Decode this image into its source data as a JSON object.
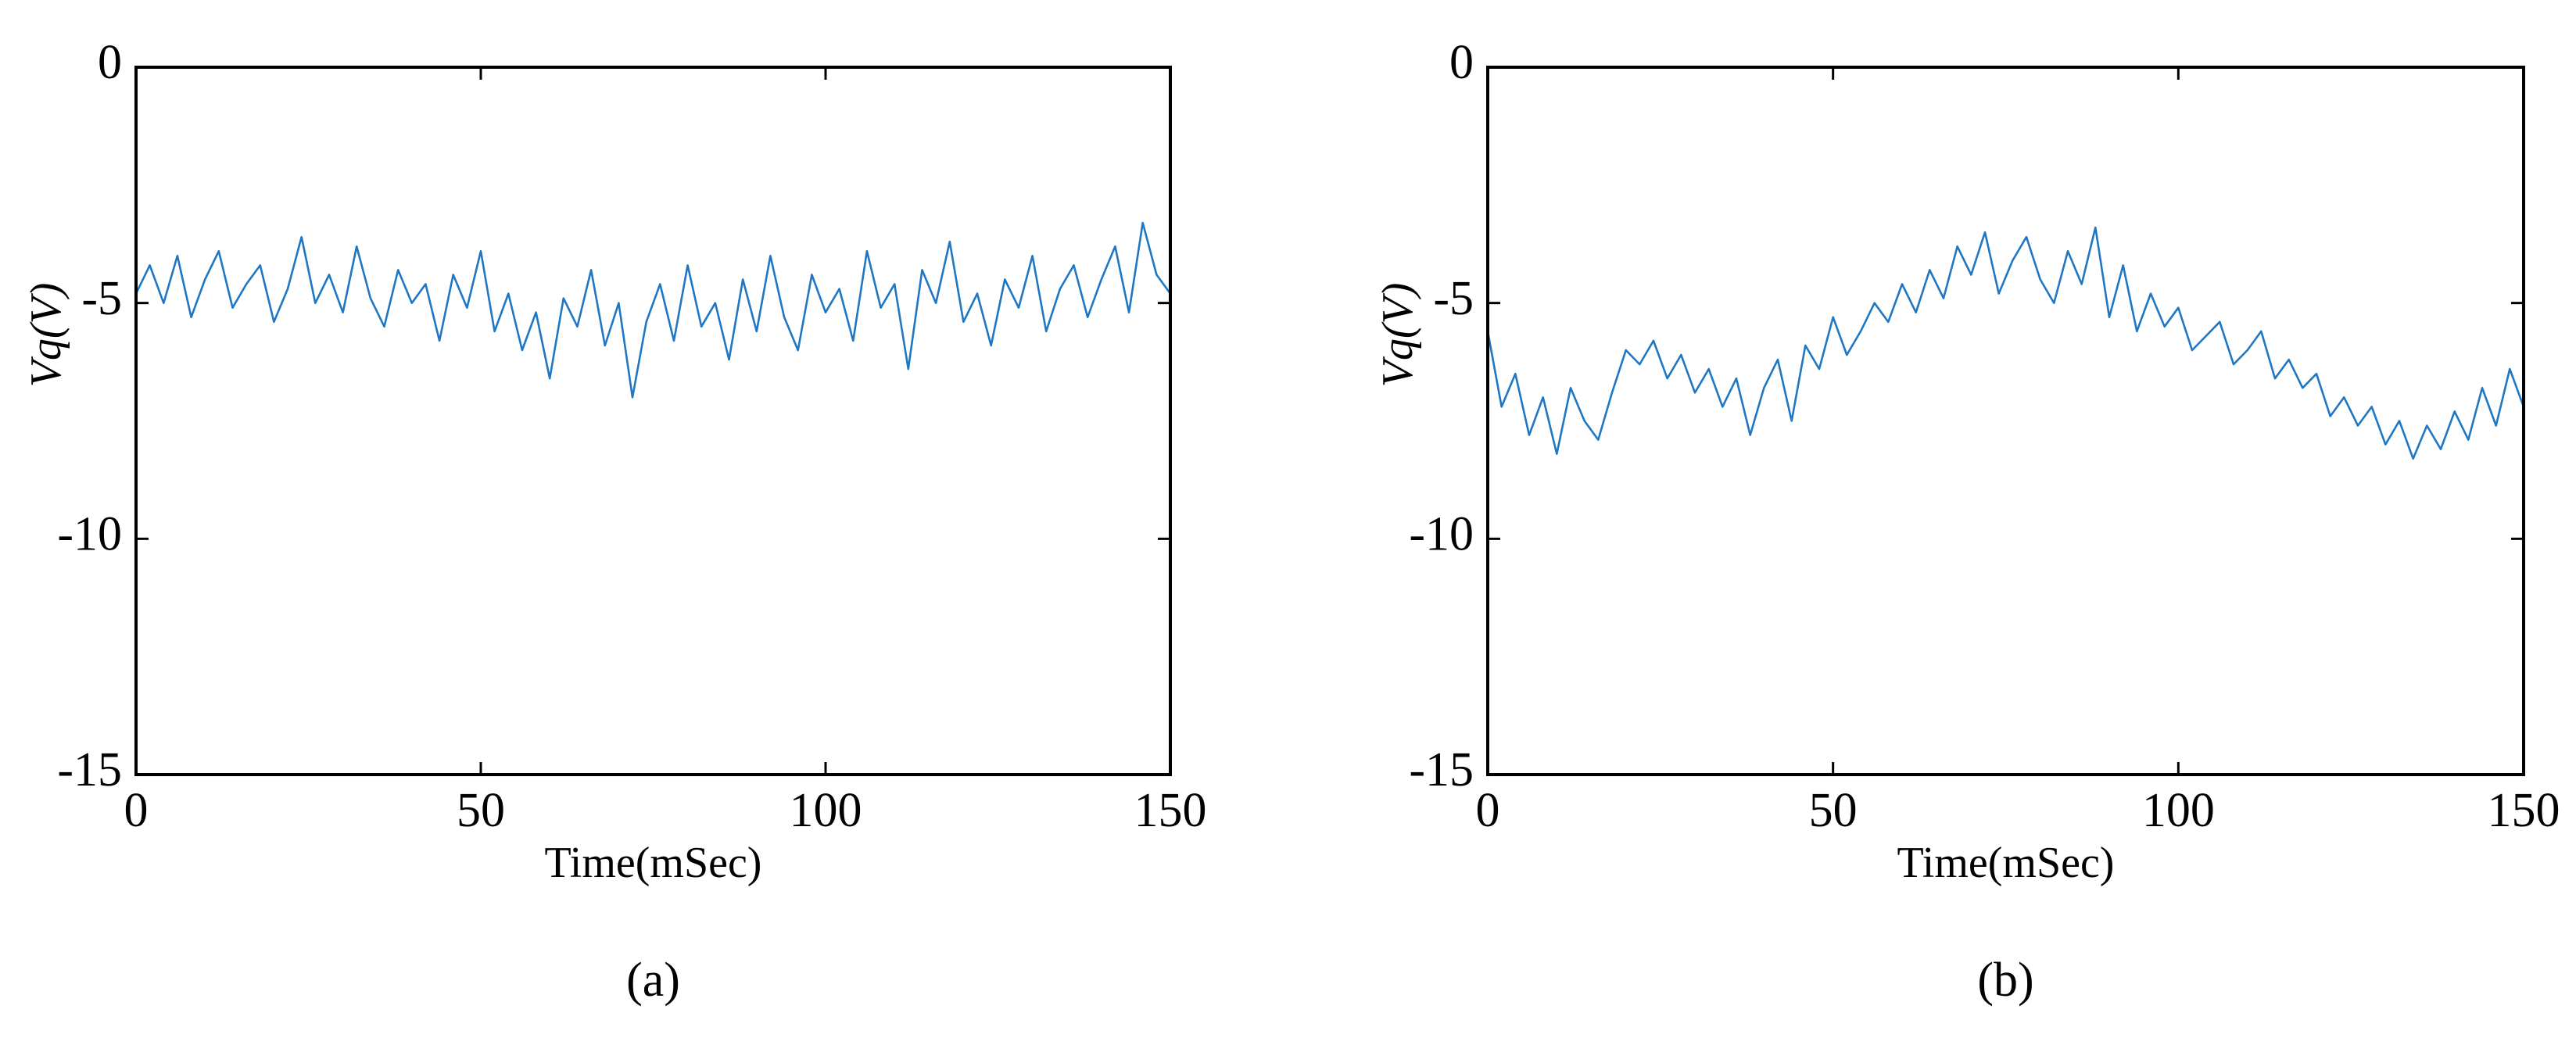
{
  "chart_data": [
    {
      "type": "line",
      "caption": "(a)",
      "x_label": "Time(mSec)",
      "y_label": "Vq(V)",
      "color": "#1f77c4",
      "xlim": [
        0,
        150
      ],
      "ylim": [
        -15,
        0
      ],
      "xticks": [
        0,
        50,
        100,
        150
      ],
      "yticks": [
        -15,
        -10,
        -5,
        0
      ],
      "x": [
        0,
        2,
        4,
        6,
        8,
        10,
        12,
        14,
        16,
        18,
        20,
        22,
        24,
        26,
        28,
        30,
        32,
        34,
        36,
        38,
        40,
        42,
        44,
        46,
        48,
        50,
        52,
        54,
        56,
        58,
        60,
        62,
        64,
        66,
        68,
        70,
        72,
        74,
        76,
        78,
        80,
        82,
        84,
        86,
        88,
        90,
        92,
        94,
        96,
        98,
        100,
        102,
        104,
        106,
        108,
        110,
        112,
        114,
        116,
        118,
        120,
        122,
        124,
        126,
        128,
        130,
        132,
        134,
        136,
        138,
        140,
        142,
        144,
        146,
        148,
        150
      ],
      "values": [
        -4.8,
        -4.2,
        -5.0,
        -4.0,
        -5.3,
        -4.5,
        -3.9,
        -5.1,
        -4.6,
        -4.2,
        -5.4,
        -4.7,
        -3.6,
        -5.0,
        -4.4,
        -5.2,
        -3.8,
        -4.9,
        -5.5,
        -4.3,
        -5.0,
        -4.6,
        -5.8,
        -4.4,
        -5.1,
        -3.9,
        -5.6,
        -4.8,
        -6.0,
        -5.2,
        -6.6,
        -4.9,
        -5.5,
        -4.3,
        -5.9,
        -5.0,
        -7.0,
        -5.4,
        -4.6,
        -5.8,
        -4.2,
        -5.5,
        -5.0,
        -6.2,
        -4.5,
        -5.6,
        -4.0,
        -5.3,
        -6.0,
        -4.4,
        -5.2,
        -4.7,
        -5.8,
        -3.9,
        -5.1,
        -4.6,
        -6.4,
        -4.3,
        -5.0,
        -3.7,
        -5.4,
        -4.8,
        -5.9,
        -4.5,
        -5.1,
        -4.0,
        -5.6,
        -4.7,
        -4.2,
        -5.3,
        -4.5,
        -3.8,
        -5.2,
        -3.3,
        -4.4,
        -4.8
      ]
    },
    {
      "type": "line",
      "caption": "(b)",
      "x_label": "Time(mSec)",
      "y_label": "Vq(V)",
      "color": "#1f77c4",
      "xlim": [
        0,
        150
      ],
      "ylim": [
        -15,
        0
      ],
      "xticks": [
        0,
        50,
        100,
        150
      ],
      "yticks": [
        -15,
        -10,
        -5,
        0
      ],
      "x": [
        0,
        2,
        4,
        6,
        8,
        10,
        12,
        14,
        16,
        18,
        20,
        22,
        24,
        26,
        28,
        30,
        32,
        34,
        36,
        38,
        40,
        42,
        44,
        46,
        48,
        50,
        52,
        54,
        56,
        58,
        60,
        62,
        64,
        66,
        68,
        70,
        72,
        74,
        76,
        78,
        80,
        82,
        84,
        86,
        88,
        90,
        92,
        94,
        96,
        98,
        100,
        102,
        104,
        106,
        108,
        110,
        112,
        114,
        116,
        118,
        120,
        122,
        124,
        126,
        128,
        130,
        132,
        134,
        136,
        138,
        140,
        142,
        144,
        146,
        148,
        150
      ],
      "values": [
        -5.6,
        -7.2,
        -6.5,
        -7.8,
        -7.0,
        -8.2,
        -6.8,
        -7.5,
        -7.9,
        -6.9,
        -6.0,
        -6.3,
        -5.8,
        -6.6,
        -6.1,
        -6.9,
        -6.4,
        -7.2,
        -6.6,
        -7.8,
        -6.8,
        -6.2,
        -7.5,
        -5.9,
        -6.4,
        -5.3,
        -6.1,
        -5.6,
        -5.0,
        -5.4,
        -4.6,
        -5.2,
        -4.3,
        -4.9,
        -3.8,
        -4.4,
        -3.5,
        -4.8,
        -4.1,
        -3.6,
        -4.5,
        -5.0,
        -3.9,
        -4.6,
        -3.4,
        -5.3,
        -4.2,
        -5.6,
        -4.8,
        -5.5,
        -5.1,
        -6.0,
        -5.7,
        -5.4,
        -6.3,
        -6.0,
        -5.6,
        -6.6,
        -6.2,
        -6.8,
        -6.5,
        -7.4,
        -7.0,
        -7.6,
        -7.2,
        -8.0,
        -7.5,
        -8.3,
        -7.6,
        -8.1,
        -7.3,
        -7.9,
        -6.8,
        -7.6,
        -6.4,
        -7.2
      ]
    }
  ]
}
